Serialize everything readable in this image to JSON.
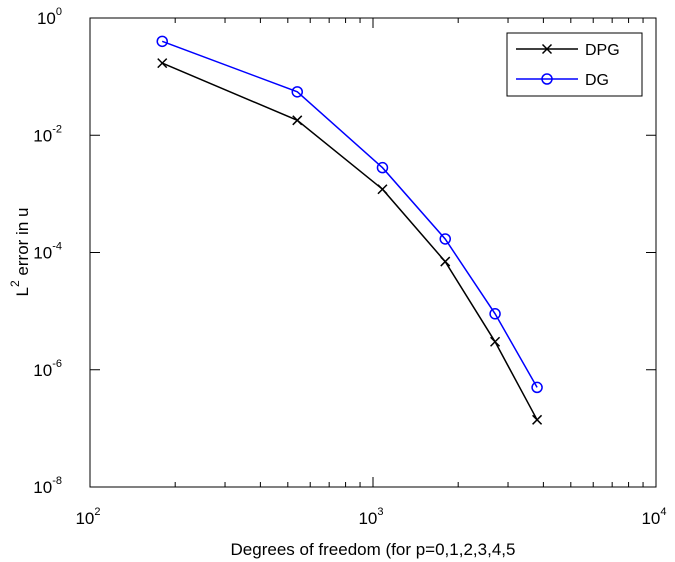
{
  "chart_data": {
    "type": "line",
    "title": "",
    "xlabel": "Degrees of freedom (for p=0,1,2,3,4,5",
    "ylabel": {
      "base": "L",
      "superscript": "2",
      "rest": " error in u"
    },
    "xscale": "log",
    "yscale": "log",
    "xlim": [
      100,
      10000
    ],
    "ylim": [
      1e-08,
      1
    ],
    "x_ticks": [
      {
        "base": "10",
        "exp": "2",
        "value": 100
      },
      {
        "base": "10",
        "exp": "3",
        "value": 1000
      },
      {
        "base": "10",
        "exp": "4",
        "value": 10000
      }
    ],
    "y_ticks": [
      {
        "base": "10",
        "exp": "0",
        "value": 1
      },
      {
        "base": "10",
        "exp": "-2",
        "value": 0.01
      },
      {
        "base": "10",
        "exp": "-4",
        "value": 0.0001
      },
      {
        "base": "10",
        "exp": "-6",
        "value": 1e-06
      },
      {
        "base": "10",
        "exp": "-8",
        "value": 1e-08
      }
    ],
    "grid": false,
    "legend_position": "top-right",
    "series": [
      {
        "name": "DPG",
        "color": "#000000",
        "marker": "x",
        "x": [
          180,
          540,
          1080,
          1800,
          2700,
          3800
        ],
        "y": [
          0.17,
          0.018,
          0.0012,
          7e-05,
          3e-06,
          1.4e-07
        ]
      },
      {
        "name": "DG",
        "color": "#0000ff",
        "marker": "o",
        "x": [
          180,
          540,
          1080,
          1800,
          2700,
          3800
        ],
        "y": [
          0.4,
          0.055,
          0.0028,
          0.00017,
          9e-06,
          5e-07
        ]
      }
    ]
  }
}
